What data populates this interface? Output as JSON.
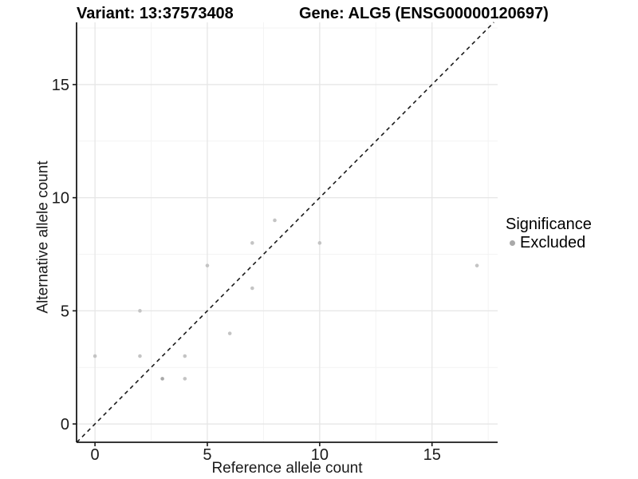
{
  "header": {
    "variant_title": "Variant: 13:37573408",
    "gene_title": "Gene: ALG5 (ENSG00000120697)"
  },
  "legend": {
    "title": "Significance",
    "items": [
      {
        "label": "Excluded",
        "color": "#a9a9a9"
      }
    ]
  },
  "chart_data": {
    "type": "scatter",
    "xlabel": "Reference allele count",
    "ylabel": "Alternative allele count",
    "xlim": [
      -0.82,
      17.92
    ],
    "ylim": [
      -0.81,
      17.75
    ],
    "x_ticks": [
      0,
      5,
      10,
      15
    ],
    "y_ticks": [
      0,
      5,
      10,
      15
    ],
    "x_minor_gridlines": [
      2.5,
      7.5,
      12.5,
      17.5
    ],
    "y_minor_gridlines": [
      2.5,
      7.5,
      12.5,
      17.5
    ],
    "grid": true,
    "legend_position": "right",
    "identity_line": {
      "show": true,
      "style": "dashed",
      "color": "#1a1a1a"
    },
    "series": [
      {
        "name": "Excluded",
        "points": [
          {
            "x": 0,
            "y": 3
          },
          {
            "x": 2,
            "y": 3
          },
          {
            "x": 2,
            "y": 5
          },
          {
            "x": 3,
            "y": 2,
            "n": 2
          },
          {
            "x": 4,
            "y": 2
          },
          {
            "x": 4,
            "y": 3
          },
          {
            "x": 5,
            "y": 7
          },
          {
            "x": 6,
            "y": 4
          },
          {
            "x": 7,
            "y": 6
          },
          {
            "x": 7,
            "y": 8
          },
          {
            "x": 8,
            "y": 9
          },
          {
            "x": 10,
            "y": 8
          },
          {
            "x": 17,
            "y": 7
          }
        ]
      }
    ],
    "colors": {
      "point": "#c4c4c4",
      "point_overlap": "#a9a9a9",
      "grid_major": "#e6e6e6",
      "grid_minor": "#f3f3f3",
      "axis": "#1a1a1a",
      "tick_label": "#1a1a1a"
    }
  }
}
